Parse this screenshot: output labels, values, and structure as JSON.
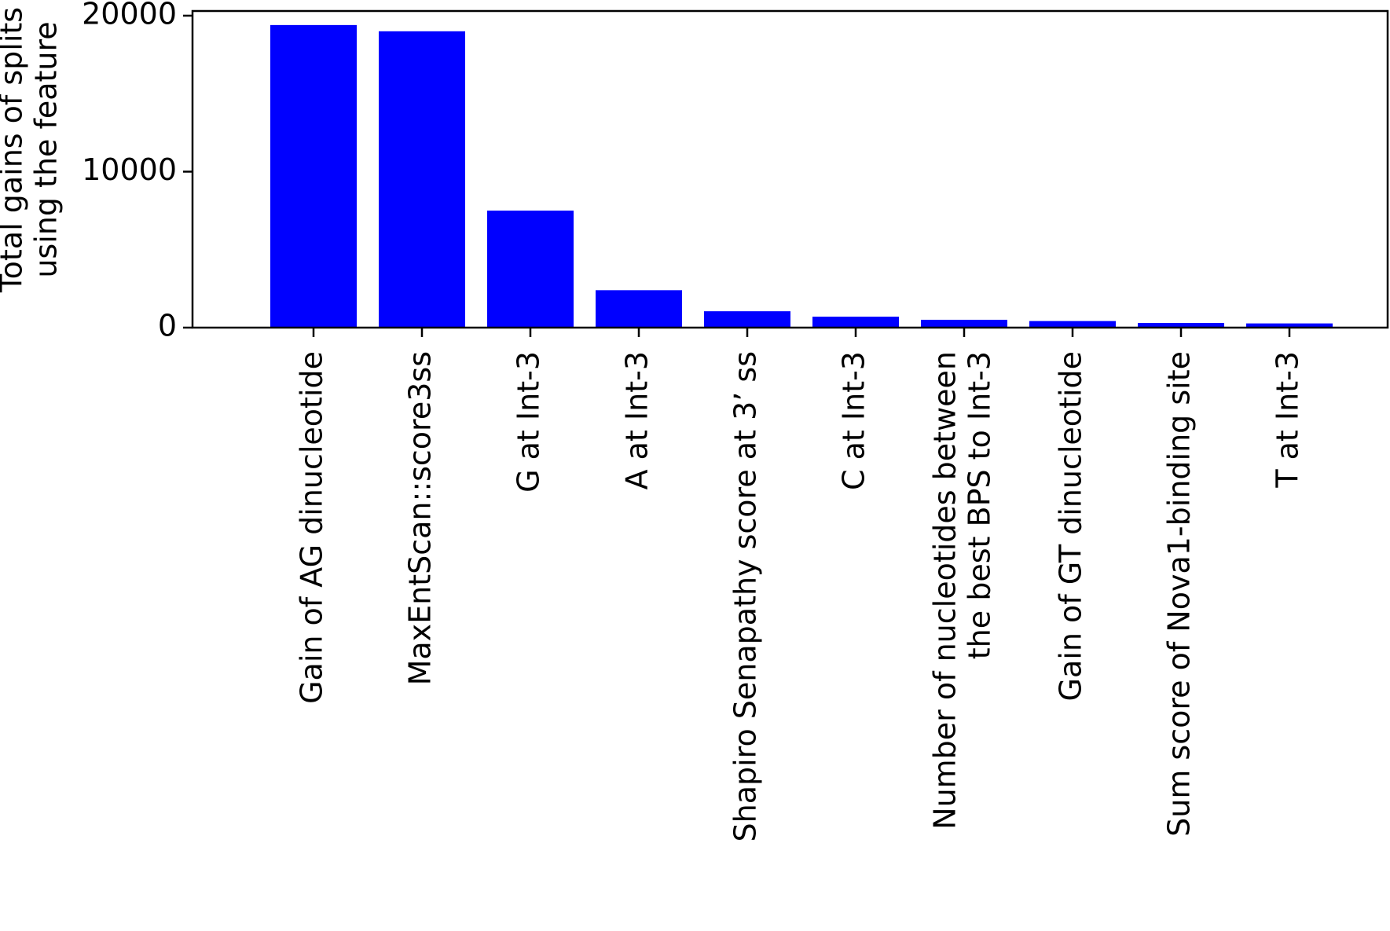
{
  "chart_data": {
    "type": "bar",
    "title": "",
    "xlabel": "",
    "ylabel": [
      "Total gains of splits",
      "using the feature"
    ],
    "categories": [
      [
        "Gain of AG dinucleotide"
      ],
      [
        "MaxEntScan::score3ss"
      ],
      [
        "G at Int-3"
      ],
      [
        "A at Int-3"
      ],
      [
        "Shapiro Senapathy score at 3’ ss"
      ],
      [
        "C at Int-3"
      ],
      [
        "Number of nucleotides between",
        "the best BPS to Int-3"
      ],
      [
        "Gain of GT dinucleotide"
      ],
      [
        "Sum score of Nova1-binding site"
      ],
      [
        "T at Int-3"
      ]
    ],
    "values": [
      19400,
      19000,
      7500,
      2400,
      1050,
      700,
      500,
      420,
      300,
      270
    ],
    "ylim": [
      0,
      20300
    ],
    "yticks": [
      0,
      10000,
      20000
    ],
    "grid": false,
    "legend": "none",
    "bar_color": "#0000ff",
    "axis_color": "#000000"
  }
}
